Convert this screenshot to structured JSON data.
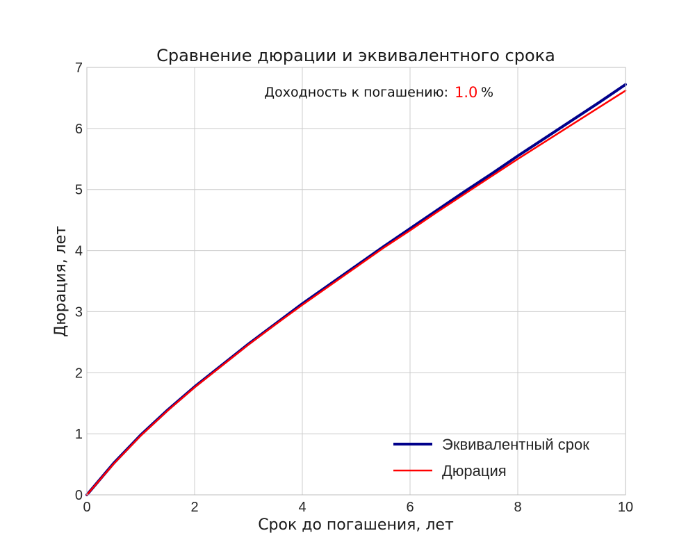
{
  "chart_data": {
    "type": "line",
    "title": "Сравнение дюрации и эквивалентного срока",
    "xlabel": "Срок до погашения, лет",
    "ylabel": "Дюрация, лет",
    "xlim": [
      0,
      10
    ],
    "ylim": [
      0,
      7
    ],
    "x_ticks": [
      "0",
      "2",
      "4",
      "6",
      "8",
      "10"
    ],
    "y_ticks": [
      "0",
      "1",
      "2",
      "3",
      "4",
      "5",
      "6",
      "7"
    ],
    "grid": true,
    "legend_position": "bottom-right",
    "annotation": {
      "prefix": "Доходность к погашению:",
      "value": "1.0",
      "suffix": "%",
      "value_color": "#ff0000"
    },
    "series": [
      {
        "name": "Эквивалентный срок",
        "color": "#00008b",
        "x": [
          0,
          0.5,
          1,
          1.5,
          2,
          2.5,
          3,
          3.5,
          4,
          4.5,
          5,
          5.5,
          6,
          6.5,
          7,
          7.5,
          8,
          8.5,
          9,
          9.5,
          10
        ],
        "y": [
          0,
          0.52,
          0.98,
          1.39,
          1.77,
          2.12,
          2.47,
          2.8,
          3.13,
          3.44,
          3.75,
          4.06,
          4.36,
          4.66,
          4.96,
          5.25,
          5.55,
          5.84,
          6.13,
          6.42,
          6.72
        ]
      },
      {
        "name": "Дюрация",
        "color": "#ff0000",
        "x": [
          0,
          0.5,
          1,
          1.5,
          2,
          2.5,
          3,
          3.5,
          4,
          4.5,
          5,
          5.5,
          6,
          6.5,
          7,
          7.5,
          8,
          8.5,
          9,
          9.5,
          10
        ],
        "y": [
          0,
          0.51,
          0.97,
          1.38,
          1.76,
          2.11,
          2.46,
          2.79,
          3.11,
          3.42,
          3.73,
          4.04,
          4.33,
          4.63,
          4.92,
          5.21,
          5.5,
          5.78,
          6.06,
          6.34,
          6.62
        ]
      }
    ]
  }
}
